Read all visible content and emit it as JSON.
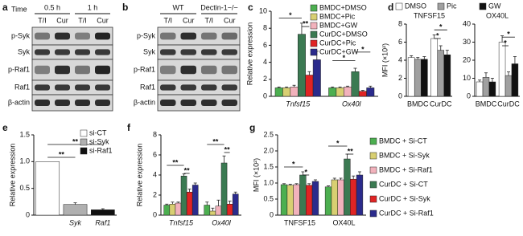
{
  "blots": [
    {
      "panel": "a",
      "time_label": "Time",
      "groups": [
        "0.5 h",
        "1 h"
      ],
      "lanes": [
        "T/I",
        "Cur",
        "T/I",
        "Cur"
      ],
      "rows": [
        "p-Syk",
        "Syk",
        "p-Raf1",
        "Raf1",
        "β-actin"
      ]
    },
    {
      "panel": "b",
      "groups": [
        "WT",
        "Dectin-1−/−"
      ],
      "lanes": [
        "T/I",
        "Cur",
        "T/I",
        "Cur"
      ],
      "rows": [
        "p-Syk",
        "Syk",
        "p-Raf1",
        "Raf1",
        "β-actin"
      ]
    }
  ],
  "chart_data": [
    {
      "type": "bar",
      "panel": "c",
      "ylabel": "Relative expression",
      "categories": [
        "Tnfsf15",
        "Ox40l"
      ],
      "ylim": [
        0,
        10
      ],
      "yticks": [
        0,
        2,
        4,
        6,
        8,
        10
      ],
      "series": [
        {
          "name": "BMDC+DMSO",
          "color": "#4caf50",
          "values": [
            1,
            1
          ],
          "errors": [
            0.1,
            0.1
          ]
        },
        {
          "name": "BMDC+Pic",
          "color": "#d8cf72",
          "values": [
            1,
            1
          ],
          "errors": [
            0.1,
            0.1
          ]
        },
        {
          "name": "BMDC+GW",
          "color": "#f2b2bc",
          "values": [
            1.1,
            1.1
          ],
          "errors": [
            0.2,
            0.1
          ]
        },
        {
          "name": "CurDC+DMSO",
          "color": "#3b7a52",
          "values": [
            7.3,
            2.9
          ],
          "errors": [
            1.3,
            0.4
          ]
        },
        {
          "name": "CurDC+Pic",
          "color": "#e02424",
          "values": [
            2.5,
            0.6
          ],
          "errors": [
            0.4,
            0.1
          ]
        },
        {
          "name": "CurDC+GW",
          "color": "#2b2b8c",
          "values": [
            4.3,
            1.0
          ],
          "errors": [
            1.0,
            0.2
          ]
        }
      ],
      "annotations": [
        "*",
        "**",
        "*",
        "*"
      ]
    },
    {
      "type": "bar",
      "panel": "d",
      "title": "TNFSF15",
      "ylabel": "MFI (×10²)",
      "categories": [
        "BMDC",
        "CurDC"
      ],
      "ylim": [
        0,
        8
      ],
      "yticks": [
        0,
        2,
        4,
        6,
        8
      ],
      "series": [
        {
          "name": "DMSO",
          "color": "#ffffff",
          "values": [
            4.3,
            6.4
          ],
          "errors": [
            0.2,
            0.4
          ]
        },
        {
          "name": "Pic",
          "color": "#a0a0a0",
          "values": [
            4.1,
            5.1
          ],
          "errors": [
            0.2,
            0.5
          ]
        },
        {
          "name": "GW",
          "color": "#111111",
          "values": [
            4.1,
            4.6
          ],
          "errors": [
            0.3,
            0.5
          ]
        }
      ],
      "annotations": [
        "*",
        "*"
      ]
    },
    {
      "type": "bar",
      "title": "OX40L",
      "categories": [
        "BMDC",
        "CurDC"
      ],
      "ylim": [
        0,
        40
      ],
      "yticks": [
        0,
        10,
        20,
        30,
        40
      ],
      "series": [
        {
          "color": "#ffffff",
          "values": [
            8,
            30
          ],
          "errors": [
            1,
            3.5
          ]
        },
        {
          "color": "#a0a0a0",
          "values": [
            10.5,
            11.5
          ],
          "errors": [
            2.5,
            2
          ]
        },
        {
          "color": "#111111",
          "values": [
            8,
            18
          ],
          "errors": [
            2,
            4
          ]
        }
      ],
      "annotations": [
        "*",
        "*"
      ]
    },
    {
      "type": "bar",
      "panel": "e",
      "ylabel": "Relative expression",
      "categories": [
        null,
        "Syk",
        "Raf1"
      ],
      "ylim": [
        0,
        1.5
      ],
      "yticks": [
        0,
        0.5,
        {
          "value": 1,
          "label": "1.0"
        },
        1.5
      ],
      "series": [
        {
          "name": "si-CT",
          "color": "#ffffff",
          "values": [
            1,
            null,
            null
          ]
        },
        {
          "name": "si-Syk",
          "color": "#b0b0b0",
          "values": [
            null,
            0.2,
            null
          ],
          "errors": [
            null,
            0.03,
            null
          ]
        },
        {
          "name": "si-Raf1",
          "color": "#111111",
          "values": [
            null,
            null,
            0.1
          ],
          "errors": [
            null,
            null,
            0.02
          ]
        }
      ],
      "annotations": [
        "**",
        "**"
      ]
    },
    {
      "type": "bar",
      "panel": "f",
      "ylabel": "Relative expression",
      "categories": [
        "Tnfsf15",
        "Ox40l"
      ],
      "ylim": [
        0,
        8
      ],
      "yticks": [
        0,
        2,
        4,
        6,
        8
      ],
      "series": [
        {
          "color": "#4caf50",
          "values": [
            1.0,
            1.0
          ],
          "errors": [
            0.1,
            0.3
          ]
        },
        {
          "color": "#d8cf72",
          "values": [
            1.1,
            0.4
          ],
          "errors": [
            0.2,
            0.3
          ]
        },
        {
          "color": "#f2b2bc",
          "values": [
            1.2,
            0.9
          ],
          "errors": [
            0.1,
            0.6
          ]
        },
        {
          "color": "#3b7a52",
          "values": [
            3.9,
            5.2
          ],
          "errors": [
            0.2,
            0.7
          ]
        },
        {
          "color": "#e02424",
          "values": [
            2.3,
            1.1
          ],
          "errors": [
            0.3,
            0.3
          ]
        },
        {
          "color": "#2b2b8c",
          "values": [
            3.0,
            2.1
          ],
          "errors": [
            0.2,
            0.2
          ]
        }
      ],
      "annotations": [
        "**",
        "**",
        "**",
        "**"
      ]
    },
    {
      "type": "bar",
      "panel": "g",
      "ylabel": "MFI (×10²)",
      "categories": [
        "TNFSF15",
        "OX40L"
      ],
      "ylim": [
        0,
        2.5
      ],
      "yticks": [
        0,
        0.5,
        {
          "value": 1,
          "label": "1.0"
        },
        1.5,
        {
          "value": 2,
          "label": "2.0"
        },
        2.5
      ],
      "series": [
        {
          "name": "BMDC + Si-CT",
          "color": "#4caf50",
          "values": [
            0.95,
            0.88
          ],
          "errors": [
            0.03,
            0.03
          ]
        },
        {
          "name": "BMDC + Si-Syk",
          "color": "#d8cf72",
          "values": [
            0.93,
            1.1
          ],
          "errors": [
            0.03,
            0.05
          ]
        },
        {
          "name": "BMDC + Si-Raf1",
          "color": "#f2b2bc",
          "values": [
            0.95,
            1.1
          ],
          "errors": [
            0.03,
            0.05
          ]
        },
        {
          "name": "CurDC + Si-CT",
          "color": "#3b7a52",
          "values": [
            1.25,
            1.75
          ],
          "errors": [
            0.1,
            0.15
          ]
        },
        {
          "name": "CurDC + Si-Syk",
          "color": "#e02424",
          "values": [
            0.93,
            1.12
          ],
          "errors": [
            0.05,
            0.1
          ]
        },
        {
          "name": "CurDC + Si-Raf1",
          "color": "#2b2b8c",
          "values": [
            1.05,
            1.25
          ],
          "errors": [
            0.05,
            0.1
          ]
        }
      ],
      "annotations": [
        "*",
        "*",
        "*",
        "**"
      ]
    }
  ]
}
